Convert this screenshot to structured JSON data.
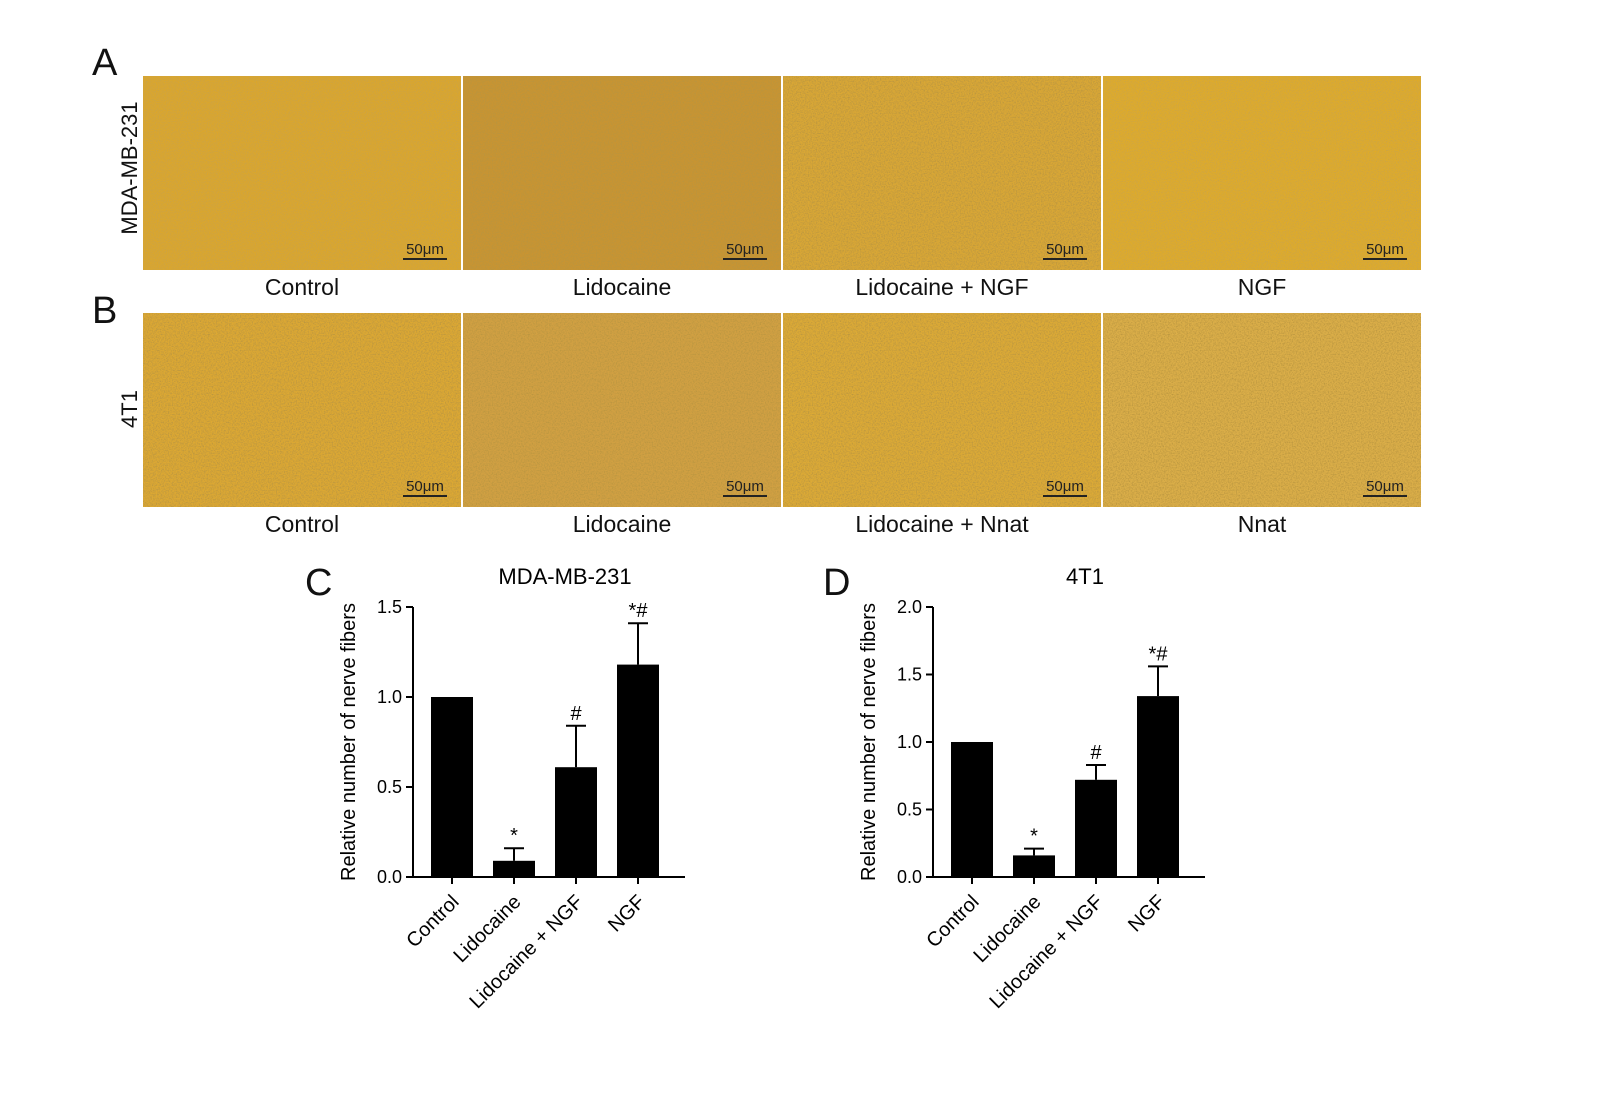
{
  "figure": {
    "panels": {
      "A": {
        "letter": "A",
        "cell_line": "MDA-MB-231",
        "conditions": [
          "Control",
          "Lidocaine",
          "Lidocaine + NGF",
          "NGF"
        ],
        "scale": "50μm"
      },
      "B": {
        "letter": "B",
        "cell_line": "4T1",
        "conditions": [
          "Control",
          "Lidocaine",
          "Lidocaine + Nnat",
          "Nnat"
        ],
        "scale": "50μm"
      }
    },
    "stain_colors": {
      "base": "#d9a32a",
      "light": "#e8c24a",
      "dark": "#8a5a12"
    }
  },
  "chart_data": [
    {
      "panel": "C",
      "type": "bar",
      "title": "MDA-MB-231",
      "ylabel": "Relative number of nerve fibers",
      "xlabel": "",
      "categories": [
        "Control",
        "Lidocaine",
        "Lidocaine + NGF",
        "NGF"
      ],
      "values": [
        1.0,
        0.09,
        0.61,
        1.18
      ],
      "errors": [
        0.0,
        0.07,
        0.23,
        0.23
      ],
      "annotations": [
        "",
        "*",
        "#",
        "*#"
      ],
      "ylim": [
        0,
        1.5
      ],
      "yticks": [
        "0.0",
        "0.5",
        "1.0",
        "1.5"
      ],
      "bar_color": "#000000",
      "grid": false
    },
    {
      "panel": "D",
      "type": "bar",
      "title": "4T1",
      "ylabel": "Relative number of nerve fibers",
      "xlabel": "",
      "categories": [
        "Control",
        "Lidocaine",
        "Lidocaine + NGF",
        "NGF"
      ],
      "values": [
        1.0,
        0.16,
        0.72,
        1.34
      ],
      "errors": [
        0.0,
        0.05,
        0.11,
        0.22
      ],
      "annotations": [
        "",
        "*",
        "#",
        "*#"
      ],
      "ylim": [
        0,
        2.0
      ],
      "yticks": [
        "0.0",
        "0.5",
        "1.0",
        "1.5",
        "2.0"
      ],
      "bar_color": "#000000",
      "grid": false
    }
  ]
}
